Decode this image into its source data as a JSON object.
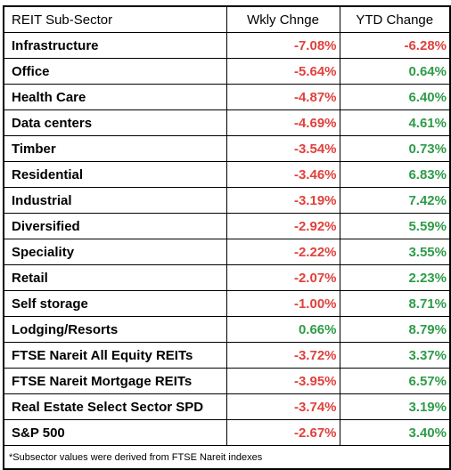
{
  "header": {
    "col1": "REIT Sub-Sector",
    "col2": "Wkly Chnge",
    "col3": "YTD Change"
  },
  "rows": [
    {
      "name": "Infrastructure",
      "weekly": "-7.08%",
      "ytd": "-6.28%",
      "weekly_sign": "neg",
      "ytd_sign": "neg"
    },
    {
      "name": "Office",
      "weekly": "-5.64%",
      "ytd": "0.64%",
      "weekly_sign": "neg",
      "ytd_sign": "pos"
    },
    {
      "name": "Health Care",
      "weekly": "-4.87%",
      "ytd": "6.40%",
      "weekly_sign": "neg",
      "ytd_sign": "pos"
    },
    {
      "name": "Data centers",
      "weekly": "-4.69%",
      "ytd": "4.61%",
      "weekly_sign": "neg",
      "ytd_sign": "pos"
    },
    {
      "name": "Timber",
      "weekly": "-3.54%",
      "ytd": "0.73%",
      "weekly_sign": "neg",
      "ytd_sign": "pos"
    },
    {
      "name": "Residential",
      "weekly": "-3.46%",
      "ytd": "6.83%",
      "weekly_sign": "neg",
      "ytd_sign": "pos"
    },
    {
      "name": "Industrial",
      "weekly": "-3.19%",
      "ytd": "7.42%",
      "weekly_sign": "neg",
      "ytd_sign": "pos"
    },
    {
      "name": "Diversified",
      "weekly": "-2.92%",
      "ytd": "5.59%",
      "weekly_sign": "neg",
      "ytd_sign": "pos"
    },
    {
      "name": "Speciality",
      "weekly": "-2.22%",
      "ytd": "3.55%",
      "weekly_sign": "neg",
      "ytd_sign": "pos"
    },
    {
      "name": "Retail",
      "weekly": "-2.07%",
      "ytd": "2.23%",
      "weekly_sign": "neg",
      "ytd_sign": "pos"
    },
    {
      "name": "Self storage",
      "weekly": "-1.00%",
      "ytd": "8.71%",
      "weekly_sign": "neg",
      "ytd_sign": "pos"
    },
    {
      "name": "Lodging/Resorts",
      "weekly": "0.66%",
      "ytd": "8.79%",
      "weekly_sign": "pos",
      "ytd_sign": "pos"
    },
    {
      "name": "FTSE Nareit All Equity REITs",
      "weekly": "-3.72%",
      "ytd": "3.37%",
      "weekly_sign": "neg",
      "ytd_sign": "pos"
    },
    {
      "name": "FTSE Nareit Mortgage REITs",
      "weekly": "-3.95%",
      "ytd": "6.57%",
      "weekly_sign": "neg",
      "ytd_sign": "pos"
    },
    {
      "name": "Real Estate Select Sector SPD",
      "weekly": "-3.74%",
      "ytd": "3.19%",
      "weekly_sign": "neg",
      "ytd_sign": "pos"
    },
    {
      "name": "S&P 500",
      "weekly": "-2.67%",
      "ytd": "3.40%",
      "weekly_sign": "neg",
      "ytd_sign": "pos"
    }
  ],
  "footnote": "*Subsector values were derived from FTSE Nareit indexes",
  "colors": {
    "negative": "#e0413c",
    "positive": "#2e9c48",
    "text": "#000000",
    "border": "#000000"
  }
}
